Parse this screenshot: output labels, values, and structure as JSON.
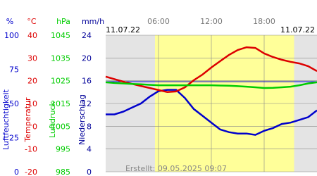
{
  "chart_data": {
    "type": "line",
    "date_left": "11.07.22",
    "date_right": "11.07.22",
    "footer": "Erstellt: 09.05.2025 09:07",
    "xlim": [
      0,
      24
    ],
    "xticks": [
      {
        "value": 6,
        "label": "06:00"
      },
      {
        "value": 12,
        "label": "12:00"
      },
      {
        "value": 18,
        "label": "18:00"
      }
    ],
    "daylight": [
      5.6,
      21.4
    ],
    "grid": true,
    "x": [
      0,
      1,
      2,
      3,
      4,
      5,
      6,
      7,
      8,
      9,
      10,
      11,
      12,
      13,
      14,
      15,
      16,
      17,
      18,
      19,
      20,
      21,
      22,
      23,
      24
    ],
    "axes": [
      {
        "unit": "%",
        "label": "Luftfeuchtigkeit",
        "color": "#0000cc",
        "lim": [
          0,
          100
        ],
        "ticks": [
          0,
          25,
          50,
          75,
          100
        ]
      },
      {
        "unit": "°C",
        "label": "Temperatur",
        "color": "#dd0000",
        "lim": [
          -20,
          40
        ],
        "ticks": [
          -20,
          -10,
          0,
          10,
          20,
          30,
          40
        ]
      },
      {
        "unit": "hPa",
        "label": "Luftdruck",
        "color": "#00cc00",
        "lim": [
          985,
          1045
        ],
        "ticks": [
          985,
          995,
          1005,
          1015,
          1025,
          1035,
          1045
        ]
      },
      {
        "unit": "mm/h",
        "label": "Niederschlag",
        "color": "#000099",
        "lim": [
          0,
          24
        ],
        "ticks": [
          0,
          4,
          8,
          12,
          16,
          20,
          24
        ]
      }
    ],
    "series": [
      {
        "name": "Luftfeuchtigkeit",
        "axis": 0,
        "color": "#0000cc",
        "values": [
          42,
          42,
          44,
          47,
          50,
          55,
          59,
          60,
          60,
          54,
          46,
          41,
          36,
          31,
          29,
          28,
          28,
          27,
          30,
          32,
          35,
          36,
          38,
          40,
          45
        ]
      },
      {
        "name": "Temperatur",
        "axis": 1,
        "color": "#dd0000",
        "values": [
          21.8,
          20.7,
          19.6,
          18.6,
          17.7,
          16.8,
          15.9,
          15,
          15.3,
          17.1,
          20.2,
          22.7,
          25.8,
          28.6,
          31.3,
          33.5,
          34.7,
          34.4,
          32,
          30.4,
          29.2,
          28.3,
          27.6,
          26.4,
          24.2
        ]
      },
      {
        "name": "Luftdruck",
        "axis": 2,
        "color": "#00cc00",
        "values": [
          1024.3,
          1024,
          1023.8,
          1023.6,
          1023.4,
          1023.2,
          1023,
          1023,
          1023,
          1023,
          1023,
          1023,
          1023,
          1022.9,
          1022.8,
          1022.6,
          1022.4,
          1022.1,
          1021.8,
          1021.9,
          1022.1,
          1022.4,
          1023,
          1023.8,
          1024.3
        ]
      }
    ]
  }
}
